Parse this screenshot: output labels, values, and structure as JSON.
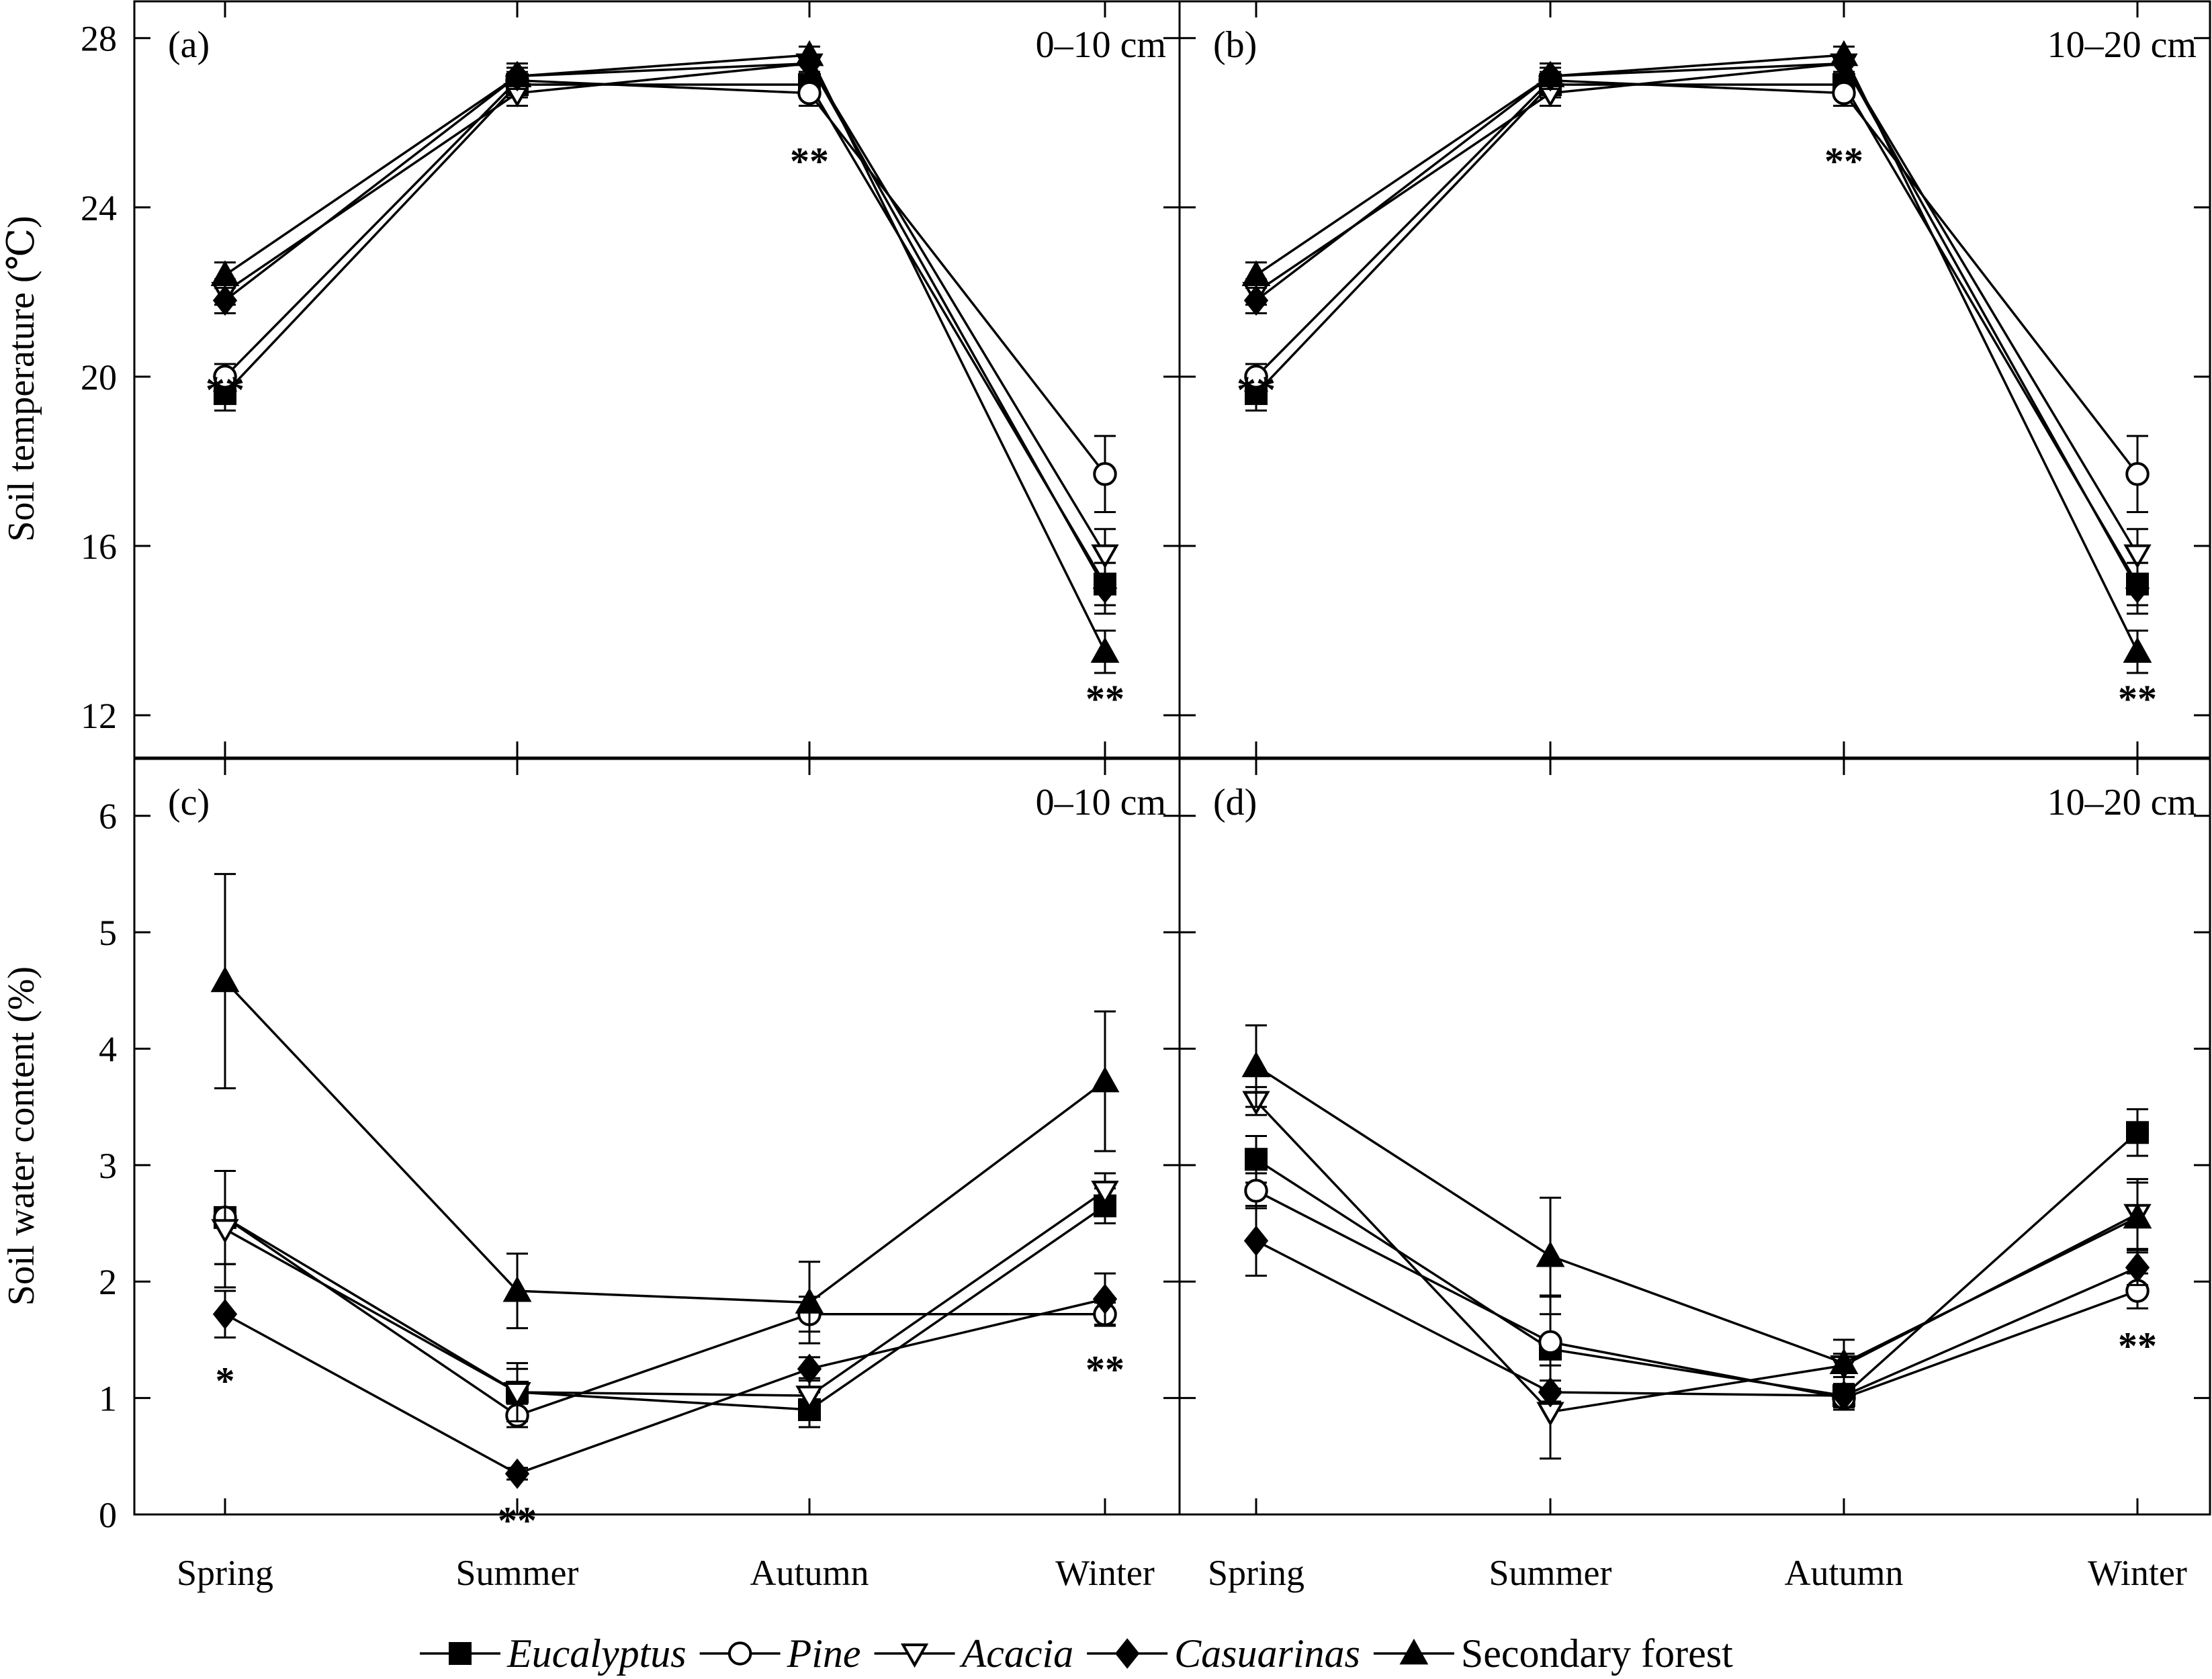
{
  "chart_data": [
    {
      "type": "line",
      "panel": "(a)",
      "depth": "0–10 cm",
      "ylabel": "Soil temperature (℃)",
      "categories": [
        "Spring",
        "Summer",
        "Autumn",
        "Winter"
      ],
      "ylim": [
        11,
        28.9
      ],
      "yticks": [
        12,
        16,
        20,
        24,
        28
      ],
      "significance": [
        {
          "category": "Spring",
          "y": 19.7,
          "text": "**"
        },
        {
          "category": "Autumn",
          "y": 25.1,
          "text": "**"
        },
        {
          "category": "Winter",
          "y": 12.4,
          "text": "**"
        }
      ],
      "series": [
        {
          "name": "Eucalyptus",
          "values": [
            19.6,
            26.9,
            26.9,
            15.1
          ],
          "errors": [
            0.4,
            0.3,
            0.3,
            0.5
          ]
        },
        {
          "name": "Pine",
          "values": [
            20.0,
            27.0,
            26.7,
            17.7
          ],
          "errors": [
            0.3,
            0.3,
            0.3,
            0.9
          ]
        },
        {
          "name": "Acacia",
          "values": [
            22.0,
            26.7,
            27.4,
            15.8
          ],
          "errors": [
            0.3,
            0.3,
            0.2,
            0.6
          ]
        },
        {
          "name": "Casuarinas",
          "values": [
            21.8,
            27.1,
            27.4,
            15.0
          ],
          "errors": [
            0.3,
            0.3,
            0.2,
            0.6
          ]
        },
        {
          "name": "Secondary forest",
          "values": [
            22.4,
            27.1,
            27.6,
            13.5
          ],
          "errors": [
            0.3,
            0.3,
            0.2,
            0.5
          ]
        }
      ]
    },
    {
      "type": "line",
      "panel": "(b)",
      "depth": "10–20 cm",
      "ylabel": "",
      "categories": [
        "Spring",
        "Summer",
        "Autumn",
        "Winter"
      ],
      "ylim": [
        11,
        28.9
      ],
      "yticks": [
        12,
        16,
        20,
        24,
        28
      ],
      "significance": [
        {
          "category": "Spring",
          "y": 19.7,
          "text": "**"
        },
        {
          "category": "Autumn",
          "y": 25.1,
          "text": "**"
        },
        {
          "category": "Winter",
          "y": 12.4,
          "text": "**"
        }
      ],
      "series": [
        {
          "name": "Eucalyptus",
          "values": [
            19.6,
            26.9,
            26.9,
            15.1
          ],
          "errors": [
            0.4,
            0.3,
            0.3,
            0.5
          ]
        },
        {
          "name": "Pine",
          "values": [
            20.0,
            27.0,
            26.7,
            17.7
          ],
          "errors": [
            0.3,
            0.3,
            0.3,
            0.9
          ]
        },
        {
          "name": "Acacia",
          "values": [
            22.0,
            26.7,
            27.4,
            15.8
          ],
          "errors": [
            0.3,
            0.3,
            0.2,
            0.6
          ]
        },
        {
          "name": "Casuarinas",
          "values": [
            21.8,
            27.1,
            27.4,
            15.0
          ],
          "errors": [
            0.3,
            0.3,
            0.2,
            0.6
          ]
        },
        {
          "name": "Secondary forest",
          "values": [
            22.4,
            27.1,
            27.6,
            13.5
          ],
          "errors": [
            0.3,
            0.3,
            0.2,
            0.5
          ]
        }
      ]
    },
    {
      "type": "line",
      "panel": "(c)",
      "depth": "0–10 cm",
      "ylabel": "Soil water content (%)",
      "categories": [
        "Spring",
        "Summer",
        "Autumn",
        "Winter"
      ],
      "ylim": [
        0,
        6.5
      ],
      "yticks": [
        0,
        1,
        2,
        3,
        4,
        5,
        6
      ],
      "significance": [
        {
          "category": "Spring",
          "y": 1.15,
          "text": "*"
        },
        {
          "category": "Summer",
          "y": -0.05,
          "text": "**"
        },
        {
          "category": "Winter",
          "y": 1.25,
          "text": "**"
        }
      ],
      "series": [
        {
          "name": "Eucalyptus",
          "values": [
            2.55,
            1.05,
            0.9,
            2.65
          ],
          "errors": [
            0.4,
            0.2,
            0.15,
            0.15
          ]
        },
        {
          "name": "Pine",
          "values": [
            2.55,
            0.85,
            1.72,
            1.72
          ],
          "errors": [
            0.4,
            0.1,
            0.15,
            0.1
          ]
        },
        {
          "name": "Acacia",
          "values": [
            2.45,
            1.05,
            1.02,
            2.78
          ],
          "errors": [
            0.5,
            0.25,
            0.15,
            0.15
          ]
        },
        {
          "name": "Casuarinas",
          "values": [
            1.72,
            0.35,
            1.25,
            1.85
          ],
          "errors": [
            0.2,
            0.05,
            0.1,
            0.22
          ]
        },
        {
          "name": "Secondary forest",
          "values": [
            4.58,
            1.92,
            1.82,
            3.72
          ],
          "errors": [
            0.92,
            0.32,
            0.35,
            0.6
          ]
        }
      ]
    },
    {
      "type": "line",
      "panel": "(d)",
      "depth": "10–20 cm",
      "ylabel": "",
      "categories": [
        "Spring",
        "Summer",
        "Autumn",
        "Winter"
      ],
      "ylim": [
        0,
        6.5
      ],
      "yticks": [
        0,
        1,
        2,
        3,
        4,
        5,
        6
      ],
      "significance": [
        {
          "category": "Winter",
          "y": 1.45,
          "text": "**"
        }
      ],
      "series": [
        {
          "name": "Eucalyptus",
          "values": [
            3.05,
            1.42,
            1.02,
            3.28
          ],
          "errors": [
            0.2,
            0.45,
            0.1,
            0.2
          ]
        },
        {
          "name": "Pine",
          "values": [
            2.78,
            1.48,
            1.0,
            1.92
          ],
          "errors": [
            0.15,
            0.4,
            0.1,
            0.15
          ]
        },
        {
          "name": "Acacia",
          "values": [
            3.55,
            0.88,
            1.28,
            2.58
          ],
          "errors": [
            0.12,
            0.4,
            0.1,
            0.3
          ]
        },
        {
          "name": "Casuarinas",
          "values": [
            2.35,
            1.05,
            1.02,
            2.12
          ],
          "errors": [
            0.3,
            0.1,
            0.1,
            0.15
          ]
        },
        {
          "name": "Secondary forest",
          "values": [
            3.85,
            2.22,
            1.3,
            2.55
          ],
          "errors": [
            0.35,
            0.5,
            0.2,
            0.3
          ]
        }
      ]
    }
  ],
  "legend": [
    {
      "name": "Eucalyptus",
      "marker": "square-filled",
      "italic": true
    },
    {
      "name": "Pine",
      "marker": "circle-open",
      "italic": true
    },
    {
      "name": "Acacia",
      "marker": "triangle-down-open",
      "italic": true
    },
    {
      "name": "Casuarinas",
      "marker": "diamond-filled",
      "italic": true
    },
    {
      "name": "Secondary forest",
      "marker": "triangle-up-filled",
      "italic": false
    }
  ]
}
